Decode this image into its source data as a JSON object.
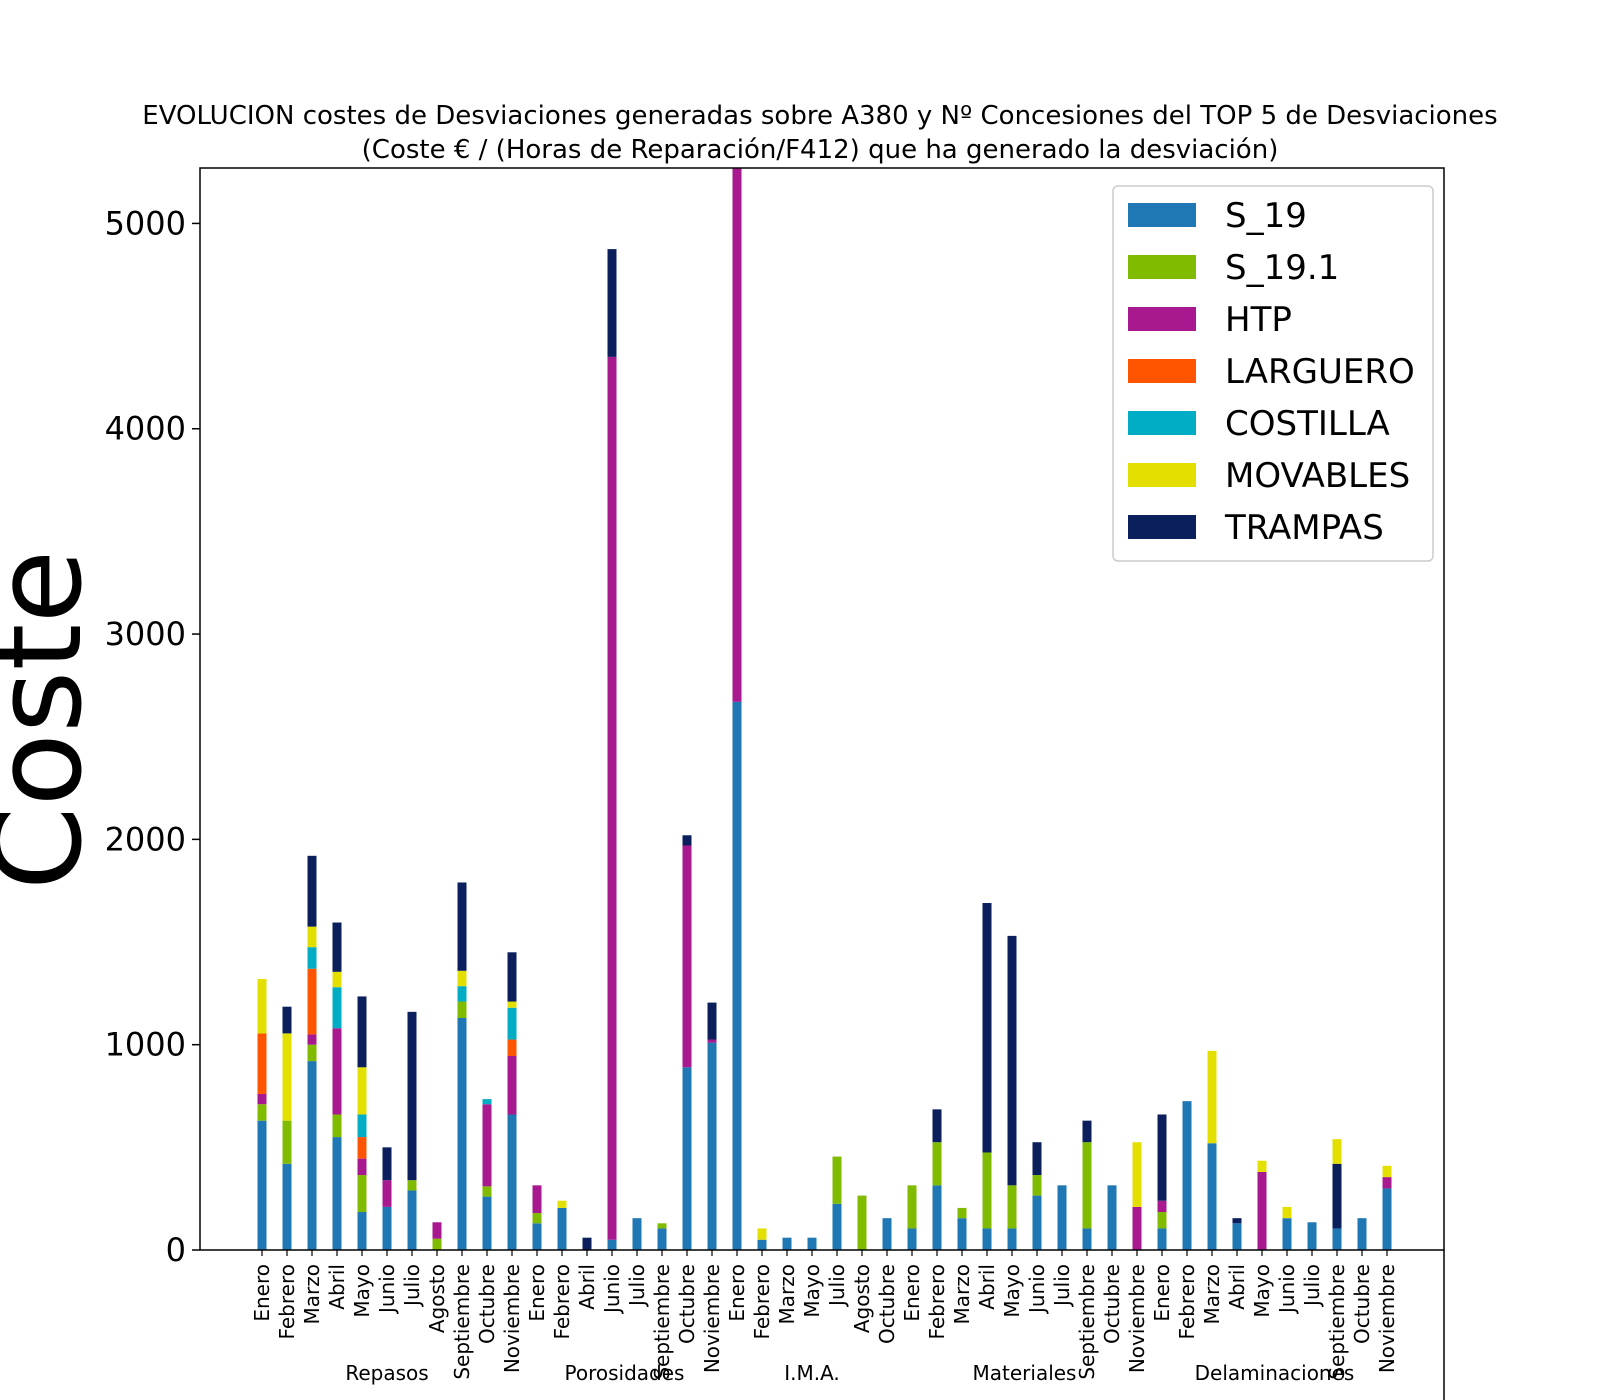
{
  "chart_data": {
    "type": "bar",
    "stacked": true,
    "title": [
      "EVOLUCION costes de Desviaciones  generadas sobre A380 y Nº Concesiones del TOP 5 de Desviaciones",
      "(Coste € / (Horas de Reparación/F412) que ha generado la desviación)"
    ],
    "ylabel": "Coste",
    "xlabel": "",
    "ylim": [
      0,
      5270
    ],
    "yticks": [
      0,
      1000,
      2000,
      3000,
      4000,
      5000
    ],
    "legend_position": "top-right",
    "series": [
      {
        "name": "S_19",
        "color": "#1f77b4",
        "values": [
          630,
          420,
          920,
          550,
          185,
          210,
          290,
          0,
          1130,
          260,
          660,
          130,
          205,
          0,
          50,
          155,
          105,
          890,
          1010,
          2670,
          50,
          60,
          60,
          225,
          0,
          155,
          105,
          315,
          155,
          105,
          105,
          265,
          315,
          105,
          315,
          0,
          105,
          725,
          520,
          130,
          0,
          155,
          135,
          105,
          155,
          300
        ]
      },
      {
        "name": "S_19.1",
        "color": "#80bb00",
        "values": [
          80,
          210,
          80,
          110,
          180,
          0,
          50,
          55,
          80,
          50,
          0,
          50,
          0,
          0,
          0,
          0,
          25,
          0,
          0,
          0,
          0,
          0,
          0,
          230,
          265,
          0,
          210,
          210,
          50,
          370,
          210,
          100,
          0,
          420,
          0,
          0,
          80,
          0,
          0,
          0,
          0,
          0,
          0,
          0,
          0,
          0
        ]
      },
      {
        "name": "HTP",
        "color": "#a8198f",
        "values": [
          50,
          0,
          50,
          420,
          80,
          130,
          0,
          80,
          0,
          400,
          285,
          135,
          0,
          0,
          4300,
          0,
          0,
          1080,
          15,
          2600,
          0,
          0,
          0,
          0,
          0,
          0,
          0,
          0,
          0,
          0,
          0,
          0,
          0,
          0,
          0,
          210,
          55,
          0,
          0,
          0,
          380,
          0,
          0,
          0,
          0,
          55
        ]
      },
      {
        "name": "LARGUERO",
        "color": "#ff5500",
        "values": [
          295,
          0,
          320,
          0,
          105,
          0,
          0,
          0,
          0,
          0,
          80,
          0,
          0,
          0,
          0,
          0,
          0,
          0,
          0,
          0,
          0,
          0,
          0,
          0,
          0,
          0,
          0,
          0,
          0,
          0,
          0,
          0,
          0,
          0,
          0,
          0,
          0,
          0,
          0,
          0,
          0,
          0,
          0,
          0,
          0,
          0
        ]
      },
      {
        "name": "COSTILLA",
        "color": "#00adc4",
        "values": [
          0,
          0,
          105,
          200,
          110,
          0,
          0,
          0,
          75,
          25,
          155,
          0,
          0,
          0,
          0,
          0,
          0,
          0,
          0,
          0,
          0,
          0,
          0,
          0,
          0,
          0,
          0,
          0,
          0,
          0,
          0,
          0,
          0,
          0,
          0,
          0,
          0,
          0,
          0,
          0,
          0,
          0,
          0,
          0,
          0,
          0
        ]
      },
      {
        "name": "MOVABLES",
        "color": "#e3e000",
        "values": [
          265,
          425,
          100,
          75,
          230,
          0,
          0,
          0,
          75,
          0,
          30,
          0,
          35,
          0,
          0,
          0,
          0,
          0,
          0,
          0,
          55,
          0,
          0,
          0,
          0,
          0,
          0,
          0,
          0,
          0,
          0,
          0,
          0,
          0,
          0,
          0,
          0,
          0,
          0,
          0,
          0,
          0,
          0,
          0,
          0,
          0
        ]
      },
      {
        "name": "TRAMPAS",
        "color": "#0a1f5c",
        "values": [
          0,
          130,
          345,
          240,
          345,
          160,
          820,
          0,
          430,
          0,
          240,
          0,
          0,
          60,
          525,
          0,
          0,
          50,
          180,
          0,
          0,
          0,
          0,
          0,
          0,
          0,
          0,
          160,
          0,
          1215,
          1215,
          160,
          0,
          105,
          0,
          0,
          420,
          0,
          0,
          25,
          0,
          0,
          0,
          315,
          0,
          0
        ]
      }
    ],
    "extra_yellow": [
      0,
      0,
      0,
      0,
      0,
      0,
      0,
      0,
      0,
      0,
      0,
      0,
      0,
      0,
      0,
      0,
      0,
      0,
      0,
      0,
      0,
      0,
      0,
      0,
      0,
      0,
      0,
      0,
      0,
      0,
      0,
      0,
      0,
      0,
      0,
      315,
      0,
      0,
      450,
      0,
      55,
      55,
      0,
      120,
      0,
      55
    ],
    "categories": [
      "Enero",
      "Febrero",
      "Marzo",
      "Abril",
      "Mayo",
      "Junio",
      "Julio",
      "Agosto",
      "Septiembre",
      "Octubre",
      "Noviembre",
      "Enero",
      "Febrero",
      "Abril",
      "Junio",
      "Julio",
      "Septiembre",
      "Octubre",
      "Noviembre",
      "Enero",
      "Febrero",
      "Marzo",
      "Mayo",
      "Julio",
      "Agosto",
      "Octubre",
      "Enero",
      "Febrero",
      "Marzo",
      "Abril",
      "Mayo",
      "Junio",
      "Julio",
      "Septiembre",
      "Octubre",
      "Noviembre",
      "Enero",
      "Febrero",
      "Marzo",
      "Abril",
      "Mayo",
      "Junio",
      "Julio",
      "Septiembre",
      "Octubre",
      "Noviembre"
    ],
    "groups": [
      {
        "label": "Repasos",
        "start": 0,
        "end": 10
      },
      {
        "label": "Porosidades",
        "start": 11,
        "end": 18
      },
      {
        "label": "I.M.A.",
        "start": 19,
        "end": 25
      },
      {
        "label": "Materiales",
        "start": 26,
        "end": 35
      },
      {
        "label": "Delaminaciones",
        "start": 36,
        "end": 45
      }
    ]
  }
}
